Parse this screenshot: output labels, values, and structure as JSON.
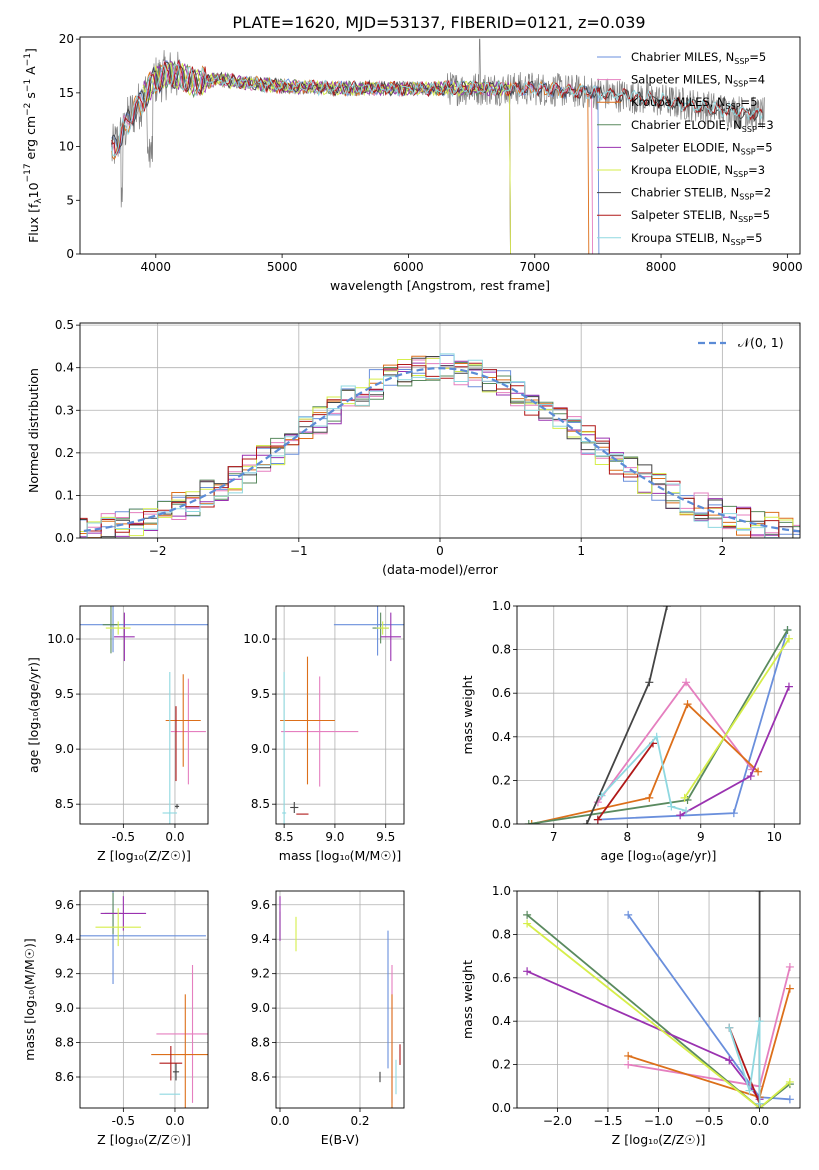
{
  "figure_title": "PLATE=1620, MJD=53137, FIBERID=0121, z=0.039",
  "colors": {
    "Chabrier MILES": "#6a8fdc",
    "Salpeter MILES": "#e57fbf",
    "Kroupa MILES": "#dc6f1a",
    "Chabrier ELODIE": "#5a8a5f",
    "Salpeter ELODIE": "#9a32b0",
    "Kroupa ELODIE": "#d6ee4a",
    "Chabrier STELIB": "#444444",
    "Salpeter STELIB": "#b01818",
    "Kroupa STELIB": "#8fd8e0",
    "data": "#808080"
  },
  "chart_data": [
    {
      "id": "spectrum",
      "type": "line",
      "title": "PLATE=1620, MJD=53137, FIBERID=0121, z=0.039",
      "xlabel": "wavelength [Angstrom, rest frame]",
      "ylabel_parts": [
        "Flux [f",
        "λ",
        "10",
        "−17",
        " erg cm",
        "−2",
        " s",
        "−1",
        " A",
        "−1",
        "]"
      ],
      "xlim": [
        3400,
        9100
      ],
      "ylim": [
        0,
        20.2
      ],
      "xticks": [
        4000,
        5000,
        6000,
        7000,
        8000,
        9000
      ],
      "yticks": [
        0,
        5,
        10,
        15,
        20
      ],
      "continuum": {
        "x": [
          3650,
          3700,
          3750,
          3800,
          3850,
          3900,
          3950,
          4000,
          4050,
          4100,
          4200,
          4300,
          4500,
          5000,
          5500,
          6000,
          6500,
          7000,
          7500,
          8000,
          8500,
          8800
        ],
        "y": [
          9.5,
          10.5,
          11.5,
          13.0,
          13.5,
          14.5,
          15.5,
          16.2,
          16.5,
          16.8,
          16.5,
          16.0,
          16.2,
          15.6,
          15.4,
          15.4,
          15.4,
          15.4,
          15.0,
          14.3,
          13.4,
          13.0
        ]
      },
      "models": [
        {
          "name": "Chabrier MILES",
          "nssp": "5",
          "xmin": 3650,
          "xmax": 7500
        },
        {
          "name": "Salpeter MILES",
          "nssp": "4",
          "xmin": 3650,
          "xmax": 7450
        },
        {
          "name": "Kroupa MILES",
          "nssp": "5",
          "xmin": 3650,
          "xmax": 7420
        },
        {
          "name": "Chabrier ELODIE",
          "nssp": "3",
          "xmin": 3900,
          "xmax": 6800
        },
        {
          "name": "Salpeter ELODIE",
          "nssp": "5",
          "xmin": 3900,
          "xmax": 6800
        },
        {
          "name": "Kroupa ELODIE",
          "nssp": "3",
          "xmin": 3900,
          "xmax": 6800
        },
        {
          "name": "Chabrier STELIB",
          "nssp": "2",
          "xmin": 3650,
          "xmax": 8800
        },
        {
          "name": "Salpeter STELIB",
          "nssp": "5",
          "xmin": 3650,
          "xmax": 8800
        },
        {
          "name": "Kroupa STELIB",
          "nssp": "5",
          "xmin": 3650,
          "xmax": 8800
        }
      ]
    },
    {
      "id": "residuals",
      "type": "histogram",
      "xlabel": "(data-model)/error",
      "ylabel": "Normed distribution",
      "xlim": [
        -2.55,
        2.55
      ],
      "ylim": [
        0,
        0.505
      ],
      "xticks": [
        -2,
        -1,
        0,
        1,
        2
      ],
      "yticks": [
        0,
        0.1,
        0.2,
        0.3,
        0.4,
        0.5
      ],
      "legend_label": "𝒩(0, 1)",
      "reference_curve": "gaussian mean 0 sigma 1"
    },
    {
      "id": "age_vs_z",
      "type": "errorbar",
      "xlabel": "Z [log₁₀(Z/Z☉)]",
      "ylabel": "age  [log₁₀(age/yr)]",
      "xlim": [
        -0.92,
        0.32
      ],
      "ylim": [
        8.32,
        10.3
      ],
      "xticks": [
        -0.5,
        0.0
      ],
      "yticks": [
        8.5,
        9.0,
        9.5,
        10.0
      ],
      "points": [
        {
          "name": "Chabrier MILES",
          "x": -0.6,
          "y": 10.13,
          "xerr": 0.92,
          "yerr": 0.25
        },
        {
          "name": "Salpeter MILES",
          "x": 0.13,
          "y": 9.16,
          "xerr": 0.17,
          "yerr": 0.48
        },
        {
          "name": "Kroupa MILES",
          "x": 0.08,
          "y": 9.26,
          "xerr": 0.17,
          "yerr": 0.42
        },
        {
          "name": "Chabrier ELODIE",
          "x": -0.62,
          "y": 10.13,
          "xerr": 0.08,
          "yerr": 0.26
        },
        {
          "name": "Salpeter ELODIE",
          "x": -0.49,
          "y": 10.02,
          "xerr": 0.1,
          "yerr": 0.22
        },
        {
          "name": "Kroupa ELODIE",
          "x": -0.55,
          "y": 10.1,
          "xerr": 0.12,
          "yerr": 0.06
        },
        {
          "name": "Chabrier STELIB",
          "x": 0.02,
          "y": 8.48,
          "xerr": 0.02,
          "yerr": 0.02
        },
        {
          "name": "Salpeter STELIB",
          "x": 0.01,
          "y": 9.05,
          "xerr": 0.0,
          "yerr": 0.34
        },
        {
          "name": "Kroupa STELIB",
          "x": -0.05,
          "y": 8.42,
          "xerr": 0.07,
          "yerr": 1.28
        }
      ]
    },
    {
      "id": "age_vs_mass",
      "type": "errorbar",
      "xlabel": "mass [log₁₀(M/M☉)]",
      "ylabel": "",
      "xlim": [
        8.42,
        9.68
      ],
      "ylim": [
        8.32,
        10.3
      ],
      "xticks": [
        8.5,
        9.0,
        9.5
      ],
      "yticks": [
        8.5,
        9.0,
        9.5,
        10.0
      ],
      "points": [
        {
          "name": "Chabrier MILES",
          "x": 9.42,
          "y": 10.13,
          "xerr": 0.43,
          "yerr": 0.28
        },
        {
          "name": "Salpeter MILES",
          "x": 8.85,
          "y": 9.16,
          "xerr": 0.38,
          "yerr": 0.5
        },
        {
          "name": "Kroupa MILES",
          "x": 8.73,
          "y": 9.26,
          "xerr": 0.27,
          "yerr": 0.58
        },
        {
          "name": "Chabrier ELODIE",
          "x": 9.45,
          "y": 10.1,
          "xerr": 0.08,
          "yerr": 0.14
        },
        {
          "name": "Salpeter ELODIE",
          "x": 9.55,
          "y": 10.02,
          "xerr": 0.1,
          "yerr": 0.22
        },
        {
          "name": "Kroupa ELODIE",
          "x": 9.47,
          "y": 10.1,
          "xerr": 0.06,
          "yerr": 0.06
        },
        {
          "name": "Chabrier STELIB",
          "x": 8.6,
          "y": 8.47,
          "xerr": 0.04,
          "yerr": 0.05
        },
        {
          "name": "Salpeter STELIB",
          "x": 8.68,
          "y": 8.41,
          "xerr": 0.06,
          "yerr": 0.0
        },
        {
          "name": "Kroupa STELIB",
          "x": 8.5,
          "y": 8.42,
          "xerr": 0.02,
          "yerr": 1.28
        }
      ]
    },
    {
      "id": "weight_vs_age",
      "type": "line",
      "xlabel": "age  [log₁₀(age/yr)]",
      "ylabel": "mass weight",
      "xlim": [
        6.5,
        10.35
      ],
      "ylim": [
        0,
        1.0
      ],
      "xticks": [
        7,
        8,
        9,
        10
      ],
      "yticks": [
        0.0,
        0.2,
        0.4,
        0.6,
        0.8,
        1.0
      ],
      "series": [
        {
          "name": "Chabrier MILES",
          "x": [
            7.6,
            9.45,
            10.18
          ],
          "y": [
            0.02,
            0.05,
            0.89
          ]
        },
        {
          "name": "Salpeter MILES",
          "x": [
            7.6,
            8.8,
            9.7
          ],
          "y": [
            0.1,
            0.65,
            0.25
          ]
        },
        {
          "name": "Kroupa MILES",
          "x": [
            6.7,
            8.3,
            8.82,
            9.78
          ],
          "y": [
            0.0,
            0.12,
            0.55,
            0.24
          ]
        },
        {
          "name": "Chabrier ELODIE",
          "x": [
            6.66,
            8.82,
            10.18
          ],
          "y": [
            0.0,
            0.11,
            0.89
          ]
        },
        {
          "name": "Salpeter ELODIE",
          "x": [
            8.72,
            9.68,
            10.2
          ],
          "y": [
            0.04,
            0.22,
            0.63
          ]
        },
        {
          "name": "Kroupa ELODIE",
          "x": [
            8.78,
            10.2
          ],
          "y": [
            0.12,
            0.85
          ]
        },
        {
          "name": "Chabrier STELIB",
          "x": [
            7.45,
            8.3,
            8.54
          ],
          "y": [
            0.0,
            0.65,
            1.0
          ]
        },
        {
          "name": "Salpeter STELIB",
          "x": [
            7.6,
            8.35
          ],
          "y": [
            0.02,
            0.37
          ]
        },
        {
          "name": "Kroupa STELIB",
          "x": [
            7.65,
            8.4,
            8.6,
            8.8
          ],
          "y": [
            0.13,
            0.4,
            0.08,
            0.06
          ]
        }
      ]
    },
    {
      "id": "mass_vs_z",
      "type": "errorbar",
      "xlabel": "Z [log₁₀(Z/Z☉)]",
      "ylabel": "mass [log₁₀(M/M☉)]",
      "xlim": [
        -0.92,
        0.32
      ],
      "ylim": [
        8.42,
        9.68
      ],
      "xticks": [
        -0.5,
        0.0
      ],
      "yticks": [
        8.6,
        8.8,
        9.0,
        9.2,
        9.4,
        9.6
      ],
      "points": [
        {
          "name": "Chabrier MILES",
          "x": -0.6,
          "y": 9.42,
          "xerr": 0.9,
          "yerr": 0.28
        },
        {
          "name": "Salpeter MILES",
          "x": 0.17,
          "y": 8.85,
          "xerr": 0.35,
          "yerr": 0.4
        },
        {
          "name": "Kroupa MILES",
          "x": 0.1,
          "y": 8.73,
          "xerr": 0.33,
          "yerr": 0.35
        },
        {
          "name": "Chabrier ELODIE",
          "x": -0.6,
          "y": 9.55,
          "xerr": 0.08,
          "yerr": 0.12
        },
        {
          "name": "Salpeter ELODIE",
          "x": -0.5,
          "y": 9.55,
          "xerr": 0.22,
          "yerr": 0.1
        },
        {
          "name": "Kroupa ELODIE",
          "x": -0.55,
          "y": 9.47,
          "xerr": 0.22,
          "yerr": 0.11
        },
        {
          "name": "Chabrier STELIB",
          "x": 0.01,
          "y": 8.63,
          "xerr": 0.03,
          "yerr": 0.05
        },
        {
          "name": "Salpeter STELIB",
          "x": -0.04,
          "y": 8.68,
          "xerr": 0.11,
          "yerr": 0.1
        },
        {
          "name": "Kroupa STELIB",
          "x": -0.05,
          "y": 8.5,
          "xerr": 0.1,
          "yerr": 0.0
        }
      ]
    },
    {
      "id": "mass_vs_ebv",
      "type": "errorbar",
      "xlabel": "E(B-V)",
      "ylabel": "",
      "xlim": [
        -0.01,
        0.31
      ],
      "ylim": [
        8.42,
        9.68
      ],
      "xticks": [
        0.0,
        0.2
      ],
      "yticks": [
        8.6,
        8.8,
        9.0,
        9.2,
        9.4,
        9.6
      ],
      "points": [
        {
          "name": "Chabrier MILES",
          "x": 0.27,
          "y": 9.05,
          "xerr": 0.0,
          "yerr": 0.4
        },
        {
          "name": "Salpeter MILES",
          "x": 0.28,
          "y": 8.85,
          "xerr": 0.0,
          "yerr": 0.4
        },
        {
          "name": "Kroupa MILES",
          "x": 0.28,
          "y": 8.73,
          "xerr": 0.0,
          "yerr": 0.35
        },
        {
          "name": "Chabrier ELODIE",
          "x": 0.0,
          "y": 9.48,
          "xerr": 0.0,
          "yerr": 0.08
        },
        {
          "name": "Salpeter ELODIE",
          "x": 0.0,
          "y": 9.52,
          "xerr": 0.0,
          "yerr": 0.13
        },
        {
          "name": "Kroupa ELODIE",
          "x": 0.04,
          "y": 9.43,
          "xerr": 0.0,
          "yerr": 0.1
        },
        {
          "name": "Chabrier STELIB",
          "x": 0.25,
          "y": 8.6,
          "xerr": 0.0,
          "yerr": 0.03
        },
        {
          "name": "Salpeter STELIB",
          "x": 0.3,
          "y": 8.73,
          "xerr": 0.0,
          "yerr": 0.06
        },
        {
          "name": "Kroupa STELIB",
          "x": 0.29,
          "y": 8.6,
          "xerr": 0.0,
          "yerr": 0.1
        }
      ]
    },
    {
      "id": "weight_vs_z",
      "type": "line",
      "xlabel": "Z [log₁₀(Z/Z☉)]",
      "ylabel": "mass weight",
      "xlim": [
        -2.4,
        0.4
      ],
      "ylim": [
        0,
        1.0
      ],
      "xticks": [
        -2.0,
        -1.5,
        -1.0,
        -0.5,
        0.0
      ],
      "yticks": [
        0.0,
        0.2,
        0.4,
        0.6,
        0.8,
        1.0
      ],
      "series": [
        {
          "name": "Chabrier MILES",
          "x": [
            -1.3,
            0.0,
            0.3
          ],
          "y": [
            0.89,
            0.05,
            0.04
          ]
        },
        {
          "name": "Salpeter MILES",
          "x": [
            -1.3,
            0.0,
            0.3
          ],
          "y": [
            0.2,
            0.1,
            0.65
          ]
        },
        {
          "name": "Kroupa MILES",
          "x": [
            -1.3,
            0.0,
            0.3
          ],
          "y": [
            0.24,
            0.05,
            0.55
          ]
        },
        {
          "name": "Chabrier ELODIE",
          "x": [
            -2.3,
            0.0,
            0.3
          ],
          "y": [
            0.89,
            0.0,
            0.11
          ]
        },
        {
          "name": "Salpeter ELODIE",
          "x": [
            -2.3,
            -0.3,
            0.0
          ],
          "y": [
            0.63,
            0.22,
            0.04
          ]
        },
        {
          "name": "Kroupa ELODIE",
          "x": [
            -2.3,
            0.0,
            0.3
          ],
          "y": [
            0.85,
            0.0,
            0.12
          ]
        },
        {
          "name": "Chabrier STELIB",
          "x": [
            0.0,
            0.0
          ],
          "y": [
            0.0,
            1.0
          ]
        },
        {
          "name": "Salpeter STELIB",
          "x": [
            -0.3,
            0.0
          ],
          "y": [
            0.37,
            0.02
          ]
        },
        {
          "name": "Kroupa STELIB",
          "x": [
            -0.3,
            -0.1,
            0.0,
            0.0
          ],
          "y": [
            0.37,
            0.08,
            0.4,
            0.02
          ]
        }
      ]
    }
  ]
}
